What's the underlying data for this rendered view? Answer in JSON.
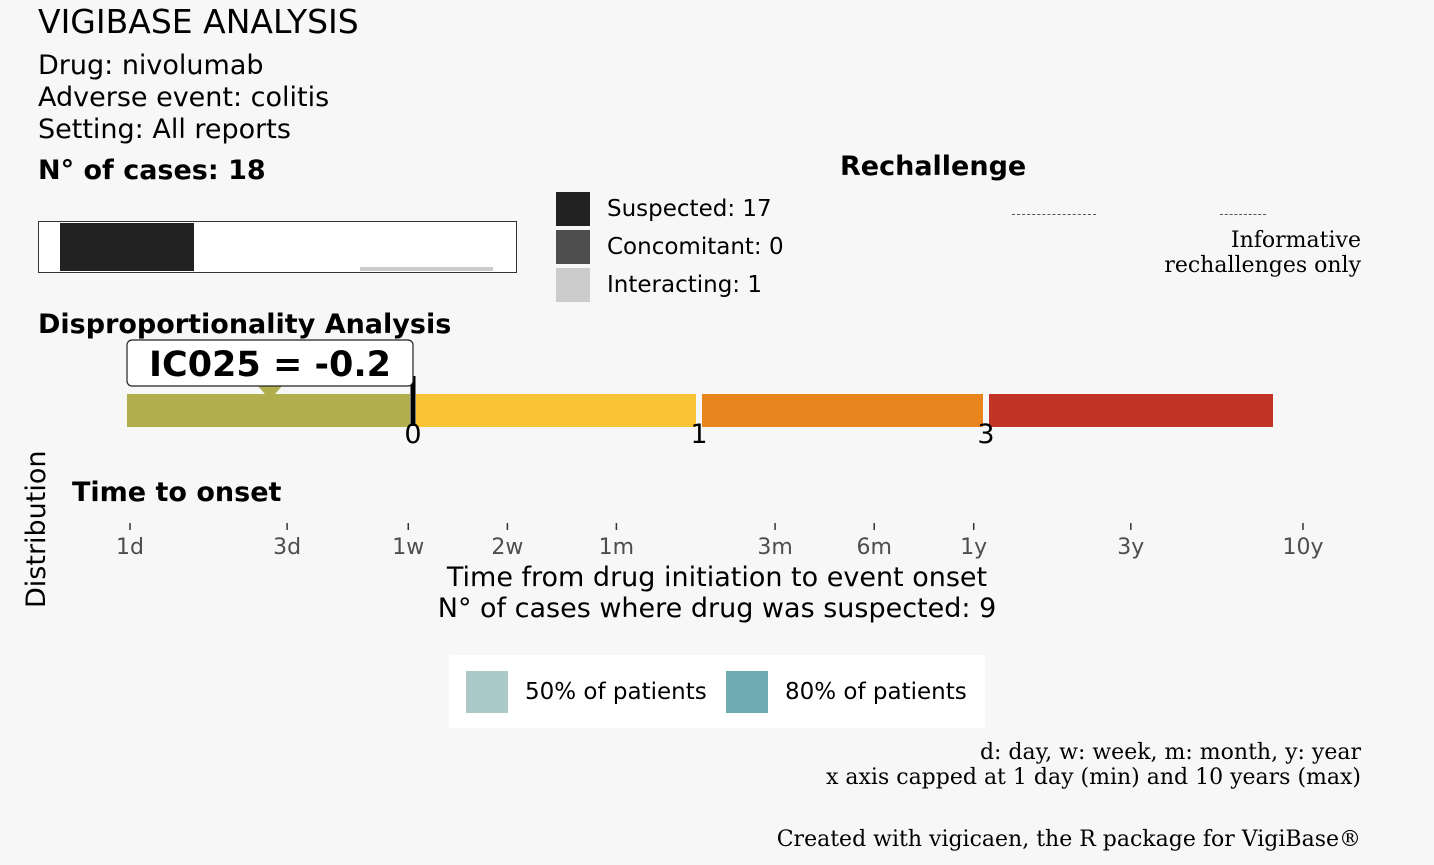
{
  "header": {
    "title": "VIGIBASE ANALYSIS",
    "drug_line": "Drug: nivolumab",
    "event_line": "Adverse event: colitis",
    "setting_line": "Setting: All reports"
  },
  "cases": {
    "heading": "N° of cases: 18",
    "legend": [
      {
        "label": "Suspected: 17",
        "color": "#222222"
      },
      {
        "label": "Concomitant: 0",
        "color": "#4d4d4d"
      },
      {
        "label": "Interacting: 1",
        "color": "#cccccc"
      }
    ],
    "bar": {
      "suspected": 17,
      "concomitant": 0,
      "interacting": 1,
      "total": 18
    }
  },
  "rechallenge": {
    "heading": "Rechallenge",
    "note_line1": "Informative",
    "note_line2": "rechallenges only"
  },
  "disproportionality": {
    "heading": "Disproportionality Analysis",
    "ic025_label": "IC025 = -0.2",
    "ic025": -0.2,
    "scale_breaks": [
      0,
      1,
      3
    ],
    "scale_labels": [
      "0",
      "1",
      "3"
    ],
    "segment_colors": [
      "#b0ae4d",
      "#f8c334",
      "#e8861d",
      "#c13426"
    ]
  },
  "time_to_onset": {
    "heading": "Time to onset",
    "y_label": "Distribution",
    "x_label_line1": "Time from drug initiation to event onset",
    "x_label_line2": "N° of cases where drug was suspected: 9",
    "legend": [
      {
        "label": "50% of patients",
        "color": "#abc9c9"
      },
      {
        "label": "80% of patients",
        "color": "#6fabb2"
      }
    ]
  },
  "chart_data": {
    "type": "bar",
    "title": "Time to onset",
    "xlabel": "Time from drug initiation to event onset",
    "ylabel": "Distribution",
    "x_scale": "log",
    "xlim": [
      "1d",
      "10y"
    ],
    "ticks": [
      {
        "label": "1d",
        "days": 1
      },
      {
        "label": "3d",
        "days": 3
      },
      {
        "label": "1w",
        "days": 7
      },
      {
        "label": "2w",
        "days": 14
      },
      {
        "label": "1m",
        "days": 30
      },
      {
        "label": "3m",
        "days": 91
      },
      {
        "label": "6m",
        "days": 182
      },
      {
        "label": "1y",
        "days": 365
      },
      {
        "label": "3y",
        "days": 1095
      },
      {
        "label": "10y",
        "days": 3650
      }
    ],
    "series": []
  },
  "footer": {
    "note_line1": "d: day, w: week, m: month, y: year",
    "note_line2": "x axis capped at 1 day (min) and 10 years (max)",
    "credit": "Created with vigicaen, the R package for VigiBase®"
  }
}
